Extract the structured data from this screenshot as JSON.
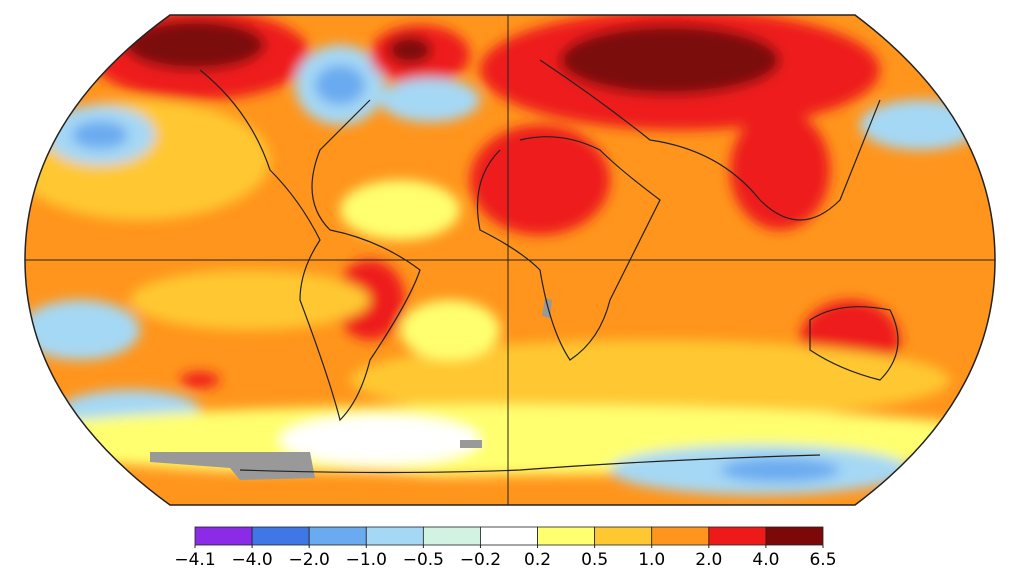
{
  "legend": {
    "ticks": [
      {
        "value": -4.1,
        "label": "−4.1"
      },
      {
        "value": -4.0,
        "label": "−4.0"
      },
      {
        "value": -2.0,
        "label": "−2.0"
      },
      {
        "value": -1.0,
        "label": "−1.0"
      },
      {
        "value": -0.5,
        "label": "−0.5"
      },
      {
        "value": -0.2,
        "label": "−0.2"
      },
      {
        "value": 0.2,
        "label": "0.2"
      },
      {
        "value": 0.5,
        "label": "0.5"
      },
      {
        "value": 1.0,
        "label": "1.0"
      },
      {
        "value": 2.0,
        "label": "2.0"
      },
      {
        "value": 4.0,
        "label": "4.0"
      },
      {
        "value": 6.5,
        "label": "6.5"
      }
    ],
    "colors": [
      "#8b2be8",
      "#3f78e6",
      "#6aaaf0",
      "#a5d8f5",
      "#d2f2e2",
      "#ffffff",
      "#ffff70",
      "#ffc830",
      "#ff951c",
      "#ee1a1a",
      "#7c0808"
    ]
  }
}
